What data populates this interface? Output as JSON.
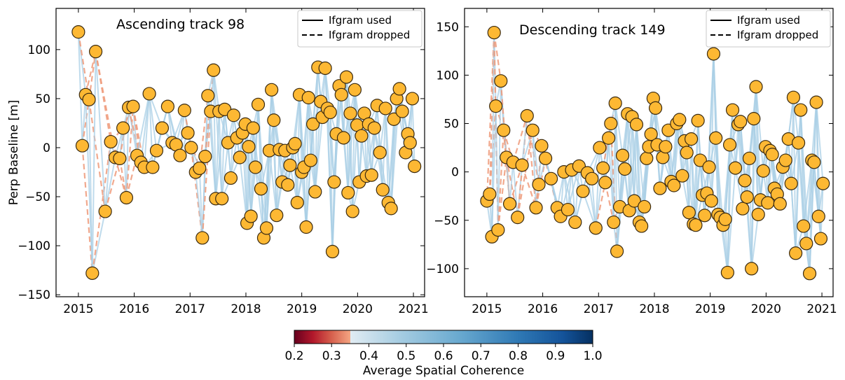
{
  "chart_data": [
    {
      "type": "scatter",
      "panel_title": "Ascending track 98",
      "ylabel": "Perp Baseline [m]",
      "xlabel": "",
      "xlim": [
        2014.6,
        2021.2
      ],
      "ylim": [
        -152,
        142
      ],
      "x_ticks": [
        2015,
        2016,
        2017,
        2018,
        2019,
        2020,
        2021
      ],
      "y_ticks": [
        -150,
        -100,
        -50,
        0,
        50,
        100
      ],
      "y_tick_labels": [
        "−150",
        "−100",
        "−50",
        "0",
        "50",
        "100"
      ],
      "legend": {
        "placement": "top-right",
        "entries": [
          "Ifgram used",
          "Ifgram dropped"
        ]
      },
      "points": [
        [
          2015.0,
          118
        ],
        [
          2015.07,
          2
        ],
        [
          2015.13,
          54
        ],
        [
          2015.19,
          49
        ],
        [
          2015.25,
          -128
        ],
        [
          2015.31,
          98
        ],
        [
          2015.48,
          -65
        ],
        [
          2015.58,
          6
        ],
        [
          2015.66,
          -10
        ],
        [
          2015.74,
          -11
        ],
        [
          2015.8,
          20
        ],
        [
          2015.86,
          -51
        ],
        [
          2015.9,
          41
        ],
        [
          2015.98,
          42
        ],
        [
          2016.05,
          -8
        ],
        [
          2016.12,
          -15
        ],
        [
          2016.18,
          -20
        ],
        [
          2016.27,
          55
        ],
        [
          2016.33,
          -20
        ],
        [
          2016.4,
          -3
        ],
        [
          2016.5,
          20
        ],
        [
          2016.6,
          42
        ],
        [
          2016.68,
          5
        ],
        [
          2016.75,
          3
        ],
        [
          2016.82,
          -8
        ],
        [
          2016.9,
          38
        ],
        [
          2016.96,
          15
        ],
        [
          2017.02,
          0
        ],
        [
          2017.1,
          -25
        ],
        [
          2017.17,
          -21
        ],
        [
          2017.22,
          -92
        ],
        [
          2017.27,
          -9
        ],
        [
          2017.32,
          53
        ],
        [
          2017.37,
          37
        ],
        [
          2017.42,
          79
        ],
        [
          2017.46,
          -52
        ],
        [
          2017.52,
          37
        ],
        [
          2017.57,
          -52
        ],
        [
          2017.62,
          39
        ],
        [
          2017.68,
          5
        ],
        [
          2017.73,
          -31
        ],
        [
          2017.78,
          33
        ],
        [
          2017.84,
          10
        ],
        [
          2017.89,
          -10
        ],
        [
          2017.94,
          15
        ],
        [
          2017.99,
          24
        ],
        [
          2018.02,
          -77
        ],
        [
          2018.05,
          1
        ],
        [
          2018.09,
          -70
        ],
        [
          2018.13,
          20
        ],
        [
          2018.17,
          -20
        ],
        [
          2018.22,
          44
        ],
        [
          2018.27,
          -42
        ],
        [
          2018.32,
          -92
        ],
        [
          2018.37,
          -82
        ],
        [
          2018.42,
          -3
        ],
        [
          2018.46,
          59
        ],
        [
          2018.5,
          28
        ],
        [
          2018.55,
          -69
        ],
        [
          2018.6,
          -2
        ],
        [
          2018.65,
          -35
        ],
        [
          2018.7,
          -3
        ],
        [
          2018.75,
          -38
        ],
        [
          2018.79,
          -18
        ],
        [
          2018.84,
          0
        ],
        [
          2018.88,
          4
        ],
        [
          2018.92,
          -56
        ],
        [
          2018.96,
          54
        ],
        [
          2019.0,
          -25
        ],
        [
          2019.04,
          -20
        ],
        [
          2019.08,
          -81
        ],
        [
          2019.12,
          51
        ],
        [
          2019.16,
          -13
        ],
        [
          2019.2,
          24
        ],
        [
          2019.24,
          -45
        ],
        [
          2019.29,
          82
        ],
        [
          2019.34,
          47
        ],
        [
          2019.37,
          31
        ],
        [
          2019.42,
          81
        ],
        [
          2019.46,
          40
        ],
        [
          2019.51,
          36
        ],
        [
          2019.55,
          -106
        ],
        [
          2019.58,
          -35
        ],
        [
          2019.62,
          14
        ],
        [
          2019.67,
          63
        ],
        [
          2019.71,
          54
        ],
        [
          2019.75,
          10
        ],
        [
          2019.8,
          72
        ],
        [
          2019.83,
          -46
        ],
        [
          2019.87,
          35
        ],
        [
          2019.91,
          -65
        ],
        [
          2019.95,
          59
        ],
        [
          2019.99,
          23
        ],
        [
          2020.03,
          -35
        ],
        [
          2020.07,
          12
        ],
        [
          2020.12,
          35
        ],
        [
          2020.16,
          -29
        ],
        [
          2020.2,
          24
        ],
        [
          2020.25,
          -28
        ],
        [
          2020.3,
          20
        ],
        [
          2020.35,
          43
        ],
        [
          2020.4,
          -5
        ],
        [
          2020.45,
          -43
        ],
        [
          2020.5,
          40
        ],
        [
          2020.55,
          -56
        ],
        [
          2020.6,
          -62
        ],
        [
          2020.65,
          29
        ],
        [
          2020.7,
          50
        ],
        [
          2020.75,
          60
        ],
        [
          2020.8,
          37
        ],
        [
          2020.86,
          -5
        ],
        [
          2020.9,
          14
        ],
        [
          2020.94,
          5
        ],
        [
          2020.98,
          50
        ],
        [
          2021.02,
          -19
        ]
      ]
    },
    {
      "type": "scatter",
      "panel_title": "Descending track 149",
      "ylabel": "",
      "xlabel": "",
      "xlim": [
        2014.6,
        2021.2
      ],
      "ylim": [
        -129,
        169
      ],
      "x_ticks": [
        2015,
        2016,
        2017,
        2018,
        2019,
        2020,
        2021
      ],
      "y_ticks": [
        -100,
        -50,
        0,
        50,
        100,
        150
      ],
      "y_tick_labels": [
        "−100",
        "−50",
        "0",
        "50",
        "100",
        "150"
      ],
      "legend": {
        "placement": "top-right",
        "entries": [
          "Ifgram used",
          "Ifgram dropped"
        ]
      },
      "points": [
        [
          2015.0,
          -30
        ],
        [
          2015.05,
          -23
        ],
        [
          2015.09,
          -67
        ],
        [
          2015.13,
          144
        ],
        [
          2015.16,
          68
        ],
        [
          2015.2,
          -60
        ],
        [
          2015.25,
          94
        ],
        [
          2015.3,
          43
        ],
        [
          2015.35,
          15
        ],
        [
          2015.41,
          -33
        ],
        [
          2015.47,
          10
        ],
        [
          2015.55,
          -47
        ],
        [
          2015.63,
          7
        ],
        [
          2015.72,
          58
        ],
        [
          2015.82,
          43
        ],
        [
          2015.88,
          -37
        ],
        [
          2015.93,
          -13
        ],
        [
          2015.98,
          27
        ],
        [
          2016.05,
          14
        ],
        [
          2016.15,
          -7
        ],
        [
          2016.26,
          -37
        ],
        [
          2016.32,
          -46
        ],
        [
          2016.38,
          0
        ],
        [
          2016.45,
          -39
        ],
        [
          2016.52,
          2
        ],
        [
          2016.58,
          -52
        ],
        [
          2016.65,
          6
        ],
        [
          2016.72,
          -20
        ],
        [
          2016.8,
          -1
        ],
        [
          2016.88,
          -7
        ],
        [
          2016.95,
          -58
        ],
        [
          2017.02,
          25
        ],
        [
          2017.08,
          4
        ],
        [
          2017.12,
          -11
        ],
        [
          2017.18,
          35
        ],
        [
          2017.22,
          50
        ],
        [
          2017.27,
          -52
        ],
        [
          2017.3,
          71
        ],
        [
          2017.33,
          -82
        ],
        [
          2017.38,
          -36
        ],
        [
          2017.43,
          17
        ],
        [
          2017.47,
          3
        ],
        [
          2017.52,
          60
        ],
        [
          2017.55,
          -40
        ],
        [
          2017.6,
          57
        ],
        [
          2017.64,
          -30
        ],
        [
          2017.68,
          49
        ],
        [
          2017.73,
          -52
        ],
        [
          2017.77,
          -56
        ],
        [
          2017.82,
          -36
        ],
        [
          2017.86,
          14
        ],
        [
          2017.9,
          26
        ],
        [
          2017.94,
          39
        ],
        [
          2017.98,
          76
        ],
        [
          2018.02,
          66
        ],
        [
          2018.05,
          28
        ],
        [
          2018.1,
          -17
        ],
        [
          2018.15,
          15
        ],
        [
          2018.2,
          26
        ],
        [
          2018.25,
          43
        ],
        [
          2018.3,
          -10
        ],
        [
          2018.35,
          -14
        ],
        [
          2018.4,
          50
        ],
        [
          2018.45,
          54
        ],
        [
          2018.5,
          -4
        ],
        [
          2018.54,
          32
        ],
        [
          2018.58,
          20
        ],
        [
          2018.62,
          -42
        ],
        [
          2018.66,
          34
        ],
        [
          2018.7,
          -54
        ],
        [
          2018.74,
          -55
        ],
        [
          2018.78,
          53
        ],
        [
          2018.82,
          12
        ],
        [
          2018.86,
          -24
        ],
        [
          2018.9,
          -45
        ],
        [
          2018.94,
          -22
        ],
        [
          2018.98,
          5
        ],
        [
          2019.02,
          -30
        ],
        [
          2019.06,
          122
        ],
        [
          2019.1,
          35
        ],
        [
          2019.14,
          -44
        ],
        [
          2019.18,
          -47
        ],
        [
          2019.23,
          -55
        ],
        [
          2019.27,
          -49
        ],
        [
          2019.31,
          -104
        ],
        [
          2019.35,
          28
        ],
        [
          2019.4,
          64
        ],
        [
          2019.45,
          4
        ],
        [
          2019.5,
          49
        ],
        [
          2019.54,
          52
        ],
        [
          2019.58,
          -38
        ],
        [
          2019.62,
          -9
        ],
        [
          2019.66,
          -26
        ],
        [
          2019.7,
          14
        ],
        [
          2019.74,
          -100
        ],
        [
          2019.78,
          55
        ],
        [
          2019.82,
          88
        ],
        [
          2019.86,
          -44
        ],
        [
          2019.9,
          -29
        ],
        [
          2019.95,
          1
        ],
        [
          2019.99,
          26
        ],
        [
          2020.03,
          -32
        ],
        [
          2020.07,
          22
        ],
        [
          2020.11,
          18
        ],
        [
          2020.15,
          -17
        ],
        [
          2020.2,
          -23
        ],
        [
          2020.25,
          -33
        ],
        [
          2020.3,
          5
        ],
        [
          2020.35,
          12
        ],
        [
          2020.4,
          34
        ],
        [
          2020.45,
          -12
        ],
        [
          2020.49,
          77
        ],
        [
          2020.53,
          -84
        ],
        [
          2020.58,
          30
        ],
        [
          2020.62,
          64
        ],
        [
          2020.67,
          -56
        ],
        [
          2020.72,
          -74
        ],
        [
          2020.78,
          -105
        ],
        [
          2020.82,
          12
        ],
        [
          2020.86,
          10
        ],
        [
          2020.9,
          72
        ],
        [
          2020.94,
          -46
        ],
        [
          2020.98,
          -69
        ],
        [
          2021.02,
          -12
        ]
      ]
    }
  ],
  "colorbar": {
    "label": "Average Spatial Coherence",
    "range": [
      0.2,
      1.0
    ],
    "ticks": [
      0.2,
      0.3,
      0.4,
      0.5,
      0.6,
      0.7,
      0.8,
      0.9,
      1.0
    ],
    "tick_labels": [
      "0.2",
      "0.3",
      "0.4",
      "0.5",
      "0.6",
      "0.7",
      "0.8",
      "0.9",
      "1.0"
    ],
    "dropped_threshold": 0.35,
    "colormap": "RdBu"
  },
  "colors": {
    "marker_fill": "#fdb833",
    "marker_edge": "#3a2a10",
    "used_link": "#a9cfe5",
    "dropped_link": "#ef9a7a"
  }
}
